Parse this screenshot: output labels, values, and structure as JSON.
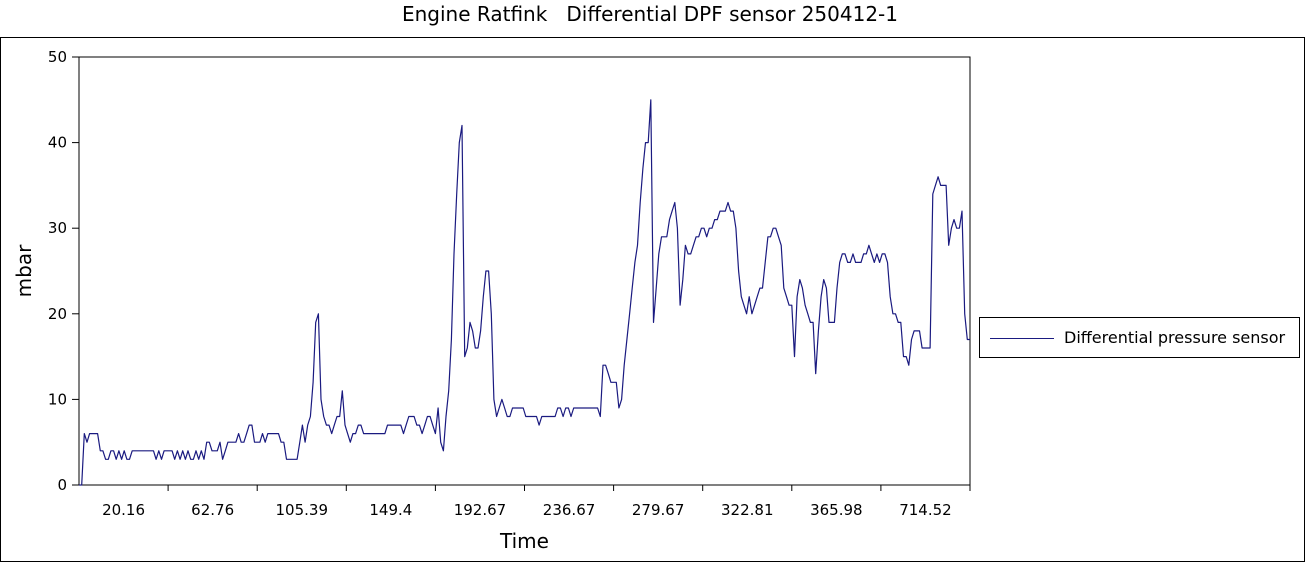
{
  "colors": {
    "series": "#1a1a80",
    "axis": "#000000",
    "background": "#ffffff"
  },
  "chart_data": {
    "type": "line",
    "title": "Engine Ratfink   Differential DPF sensor 250412-1",
    "xlabel": "Time",
    "ylabel": "mbar",
    "ylim": [
      0,
      50
    ],
    "yticks": [
      0,
      10,
      20,
      30,
      40,
      50
    ],
    "x_tick_labels": [
      "20.16",
      "62.76",
      "105.39",
      "149.4",
      "192.67",
      "236.67",
      "279.67",
      "322.81",
      "365.98",
      "714.52"
    ],
    "grid": false,
    "legend_position": "right",
    "series": [
      {
        "name": "Differential pressure sensor",
        "values": [
          0,
          0,
          6,
          5,
          6,
          6,
          6,
          6,
          4,
          4,
          3,
          3,
          4,
          4,
          3,
          4,
          3,
          4,
          3,
          3,
          4,
          4,
          4,
          4,
          4,
          4,
          4,
          4,
          4,
          3,
          4,
          3,
          4,
          4,
          4,
          4,
          3,
          4,
          3,
          4,
          3,
          4,
          3,
          3,
          4,
          3,
          4,
          3,
          5,
          5,
          4,
          4,
          4,
          5,
          3,
          4,
          5,
          5,
          5,
          5,
          6,
          5,
          5,
          6,
          7,
          7,
          5,
          5,
          5,
          6,
          5,
          6,
          6,
          6,
          6,
          6,
          5,
          5,
          3,
          3,
          3,
          3,
          3,
          5,
          7,
          5,
          7,
          8,
          12,
          19,
          20,
          10,
          8,
          7,
          7,
          6,
          7,
          8,
          8,
          11,
          7,
          6,
          5,
          6,
          6,
          7,
          7,
          6,
          6,
          6,
          6,
          6,
          6,
          6,
          6,
          6,
          7,
          7,
          7,
          7,
          7,
          7,
          6,
          7,
          8,
          8,
          8,
          7,
          7,
          6,
          7,
          8,
          8,
          7,
          6,
          9,
          5,
          4,
          8,
          11,
          17,
          27,
          34,
          40,
          42,
          15,
          16,
          19,
          18,
          16,
          16,
          18,
          22,
          25,
          25,
          20,
          10,
          8,
          9,
          10,
          9,
          8,
          8,
          9,
          9,
          9,
          9,
          9,
          8,
          8,
          8,
          8,
          8,
          7,
          8,
          8,
          8,
          8,
          8,
          8,
          9,
          9,
          8,
          9,
          9,
          8,
          9,
          9,
          9,
          9,
          9,
          9,
          9,
          9,
          9,
          9,
          8,
          14,
          14,
          13,
          12,
          12,
          12,
          9,
          10,
          14,
          17,
          20,
          23,
          26,
          28,
          33,
          37,
          40,
          40,
          45,
          19,
          23,
          27,
          29,
          29,
          29,
          31,
          32,
          33,
          30,
          21,
          24,
          28,
          27,
          27,
          28,
          29,
          29,
          30,
          30,
          29,
          30,
          30,
          31,
          31,
          32,
          32,
          32,
          33,
          32,
          32,
          30,
          25,
          22,
          21,
          20,
          22,
          20,
          21,
          22,
          23,
          23,
          26,
          29,
          29,
          30,
          30,
          29,
          28,
          23,
          22,
          21,
          21,
          15,
          22,
          24,
          23,
          21,
          20,
          19,
          19,
          13,
          18,
          22,
          24,
          23,
          19,
          19,
          19,
          23,
          26,
          27,
          27,
          26,
          26,
          27,
          26,
          26,
          26,
          27,
          27,
          28,
          27,
          26,
          27,
          26,
          27,
          27,
          26,
          22,
          20,
          20,
          19,
          19,
          15,
          15,
          14,
          17,
          18,
          18,
          18,
          16,
          16,
          16,
          16,
          34,
          35,
          36,
          35,
          35,
          35,
          28,
          30,
          31,
          30,
          30,
          32,
          20,
          17,
          17
        ]
      }
    ]
  }
}
